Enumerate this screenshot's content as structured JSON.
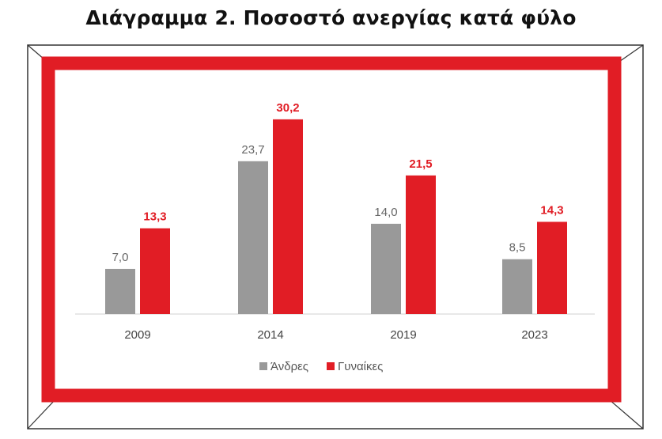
{
  "title": "Διάγραμμα 2. Ποσοστό ανεργίας κατά φύλο",
  "colors": {
    "men": "#999999",
    "women": "#e11d25",
    "frame_border": "#e11d25",
    "outer_frame": "#333333"
  },
  "chart_data": {
    "type": "bar",
    "categories": [
      "2009",
      "2014",
      "2019",
      "2023"
    ],
    "series": [
      {
        "name": "Άνδρες",
        "values": [
          7.0,
          23.7,
          14.0,
          8.5
        ],
        "labels": [
          "7,0",
          "23,7",
          "14,0",
          "8,5"
        ]
      },
      {
        "name": "Γυναίκες",
        "values": [
          13.3,
          30.2,
          21.5,
          14.3
        ],
        "labels": [
          "13,3",
          "30,2",
          "21,5",
          "14,3"
        ]
      }
    ],
    "title": "Διάγραμμα 2. Ποσοστό ανεργίας κατά φύλο",
    "ylim": [
      0,
      32
    ],
    "grid": false,
    "legend_position": "bottom-center"
  }
}
